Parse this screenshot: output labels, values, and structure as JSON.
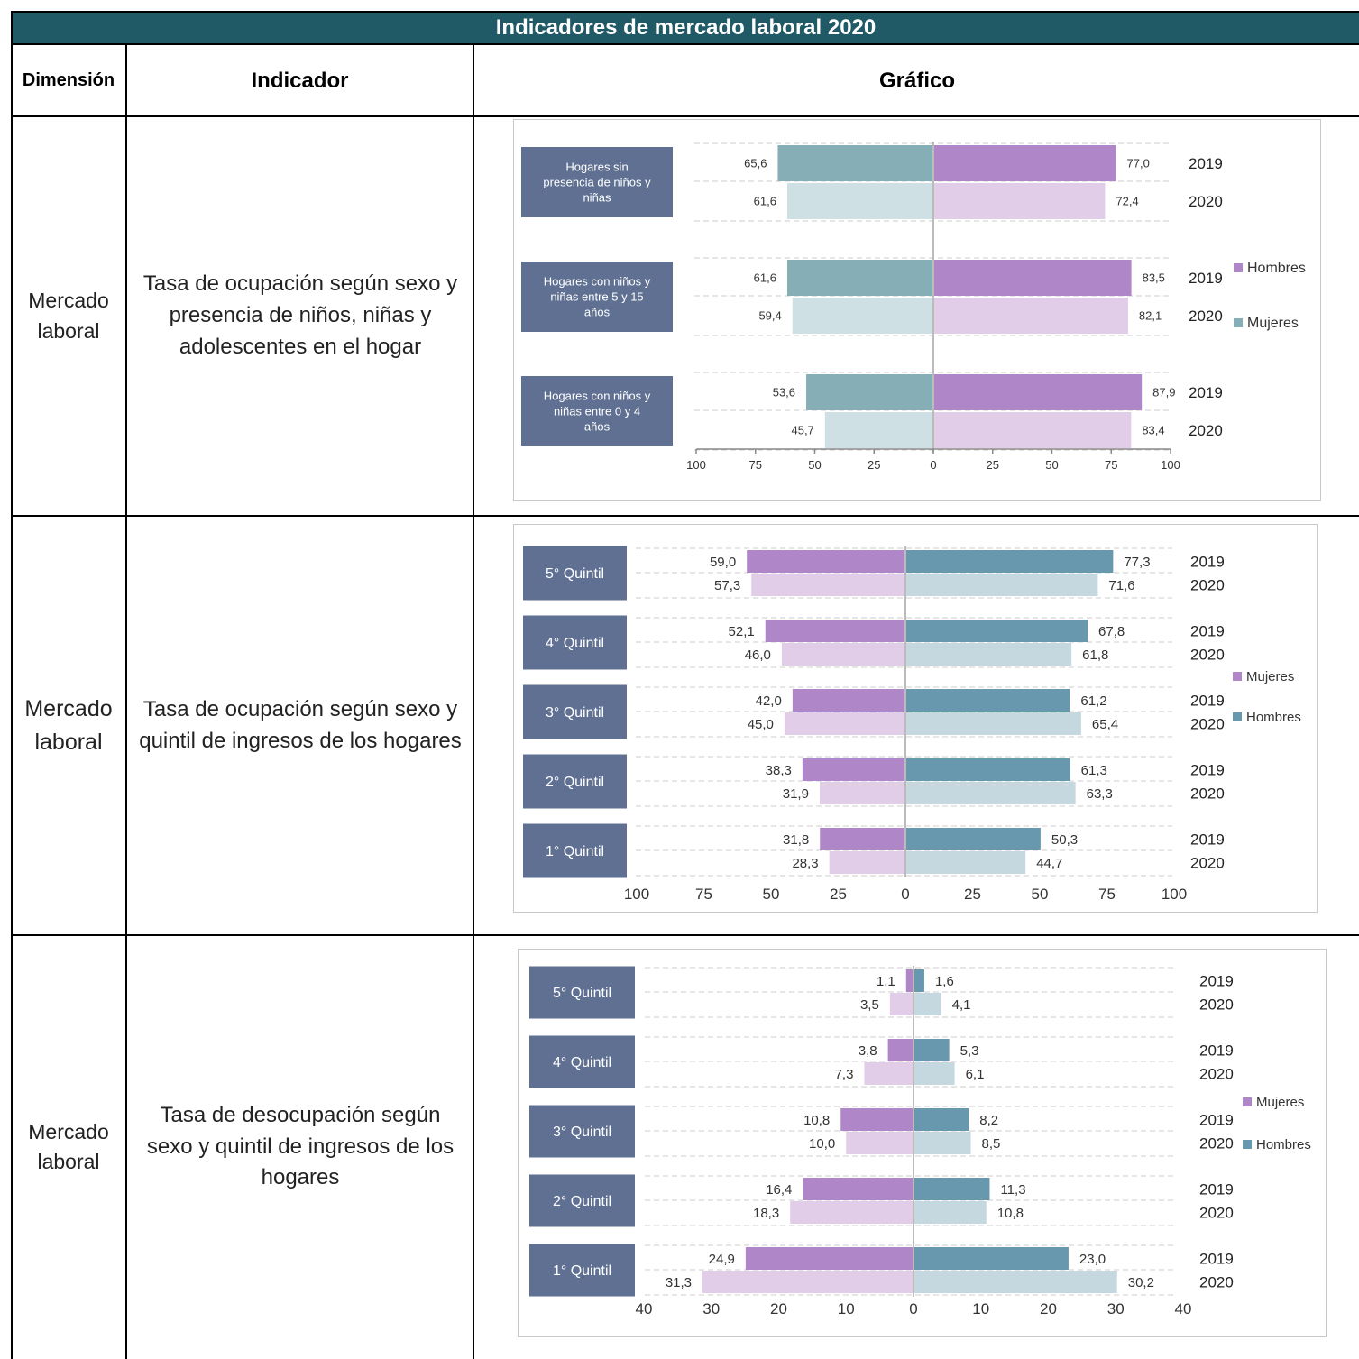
{
  "table": {
    "title": "Indicadores de mercado laboral 2020",
    "headers": {
      "dimension": "Dimensión",
      "indicator": "Indicador",
      "chart": "Gráfico"
    },
    "rows": [
      {
        "dimension": "Mercado laboral",
        "indicator": "Tasa de ocupación según sexo y presencia de niños, niñas y adolescentes en el hogar"
      },
      {
        "dimension": "Mercado laboral",
        "indicator": "Tasa de ocupación según sexo y quintil de ingresos de los hogares"
      },
      {
        "dimension": "Mercado laboral",
        "indicator": "Tasa de desocupación según sexo y quintil de ingresos de los hogares"
      }
    ]
  },
  "colors": {
    "header_bg": "#215a67",
    "label_box": "#5f7092",
    "teal_dark": "#86aeb6",
    "teal_light": "#cfe0e4",
    "purple_dark": "#af86c8",
    "purple_light": "#e2cde9",
    "blue_dark": "#6898ad",
    "blue_light": "#c5d8e0"
  },
  "chart_data": [
    {
      "type": "bar",
      "orientation": "horizontal-diverging",
      "categories": [
        "Hogares sin presencia de niños y niñas",
        "Hogares con niños y niñas entre 5 y 15 años",
        "Hogares con niños y niñas entre 0 y 4 años"
      ],
      "years": [
        "2019",
        "2020"
      ],
      "left_series": {
        "name": "Mujeres",
        "values_2019": [
          65.6,
          61.6,
          53.6
        ],
        "values_2020": [
          61.6,
          59.4,
          45.7
        ]
      },
      "right_series": {
        "name": "Hombres",
        "values_2019": [
          77.0,
          83.5,
          87.9
        ],
        "values_2020": [
          72.4,
          82.1,
          83.4
        ]
      },
      "value_labels_left_2019": [
        "65,6",
        "61,6",
        "53,6"
      ],
      "value_labels_left_2020": [
        "61,6",
        "59,4",
        "45,7"
      ],
      "value_labels_right_2019": [
        "77,0",
        "83,5",
        "87,9"
      ],
      "value_labels_right_2020": [
        "72,4",
        "82,1",
        "83,4"
      ],
      "ticks": [
        "100",
        "75",
        "50",
        "25",
        "0",
        "25",
        "50",
        "75",
        "100"
      ],
      "xlim": [
        -100,
        100
      ],
      "legend": [
        "Hombres",
        "Mujeres"
      ],
      "legend_position": "right"
    },
    {
      "type": "bar",
      "orientation": "horizontal-diverging",
      "categories": [
        "5° Quintil",
        "4° Quintil",
        "3° Quintil",
        "2° Quintil",
        "1° Quintil"
      ],
      "years": [
        "2019",
        "2020"
      ],
      "left_series": {
        "name": "Mujeres",
        "values_2019": [
          59.0,
          52.1,
          42.0,
          38.3,
          31.8
        ],
        "values_2020": [
          57.3,
          46.0,
          45.0,
          31.9,
          28.3
        ]
      },
      "right_series": {
        "name": "Hombres",
        "values_2019": [
          77.3,
          67.8,
          61.2,
          61.3,
          50.3
        ],
        "values_2020": [
          71.6,
          61.8,
          65.4,
          63.3,
          44.7
        ]
      },
      "value_labels_left_2019": [
        "59,0",
        "52,1",
        "42,0",
        "38,3",
        "31,8"
      ],
      "value_labels_left_2020": [
        "57,3",
        "46,0",
        "45,0",
        "31,9",
        "28,3"
      ],
      "value_labels_right_2019": [
        "77,3",
        "67,8",
        "61,2",
        "61,3",
        "50,3"
      ],
      "value_labels_right_2020": [
        "71,6",
        "61,8",
        "65,4",
        "63,3",
        "44,7"
      ],
      "ticks": [
        "100",
        "75",
        "50",
        "25",
        "0",
        "25",
        "50",
        "75",
        "100"
      ],
      "xlim": [
        -100,
        100
      ],
      "legend": [
        "Mujeres",
        "Hombres"
      ],
      "legend_position": "right"
    },
    {
      "type": "bar",
      "orientation": "horizontal-diverging",
      "categories": [
        "5° Quintil",
        "4° Quintil",
        "3° Quintil",
        "2° Quintil",
        "1° Quintil"
      ],
      "years": [
        "2019",
        "2020"
      ],
      "left_series": {
        "name": "Mujeres",
        "values_2019": [
          1.1,
          3.8,
          10.8,
          16.4,
          24.9
        ],
        "values_2020": [
          3.5,
          7.3,
          10.0,
          18.3,
          31.3
        ]
      },
      "right_series": {
        "name": "Hombres",
        "values_2019": [
          1.6,
          5.3,
          8.2,
          11.3,
          23.0
        ],
        "values_2020": [
          4.1,
          6.1,
          8.5,
          10.8,
          30.2
        ]
      },
      "value_labels_left_2019": [
        "1,1",
        "3,8",
        "10,8",
        "16,4",
        "24,9"
      ],
      "value_labels_left_2020": [
        "3,5",
        "7,3",
        "10,0",
        "18,3",
        "31,3"
      ],
      "value_labels_right_2019": [
        "1,6",
        "5,3",
        "8,2",
        "11,3",
        "23,0"
      ],
      "value_labels_right_2020": [
        "4,1",
        "6,1",
        "8,5",
        "10,8",
        "30,2"
      ],
      "ticks": [
        "40",
        "30",
        "20",
        "10",
        "0",
        "10",
        "20",
        "30",
        "40"
      ],
      "xlim": [
        -40,
        40
      ],
      "legend": [
        "Mujeres",
        "Hombres"
      ],
      "legend_position": "right"
    }
  ]
}
